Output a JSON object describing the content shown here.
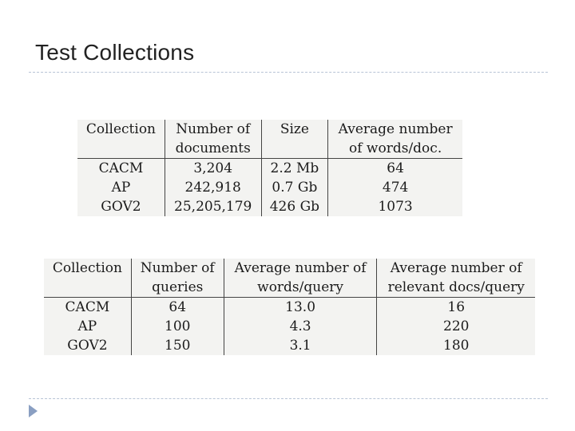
{
  "slide": {
    "title": "Test Collections"
  },
  "documents_table": {
    "headers": [
      "Collection",
      "Number of documents",
      "Size",
      "Average number of words/doc."
    ],
    "header_lines": [
      [
        "Collection"
      ],
      [
        "Number of",
        "documents"
      ],
      [
        "Size"
      ],
      [
        "Average number",
        "of words/doc."
      ]
    ],
    "rows": [
      [
        "CACM",
        "3,204",
        "2.2 Mb",
        "64"
      ],
      [
        "AP",
        "242,918",
        "0.7 Gb",
        "474"
      ],
      [
        "GOV2",
        "25,205,179",
        "426 Gb",
        "1073"
      ]
    ]
  },
  "queries_table": {
    "headers": [
      "Collection",
      "Number of queries",
      "Average number of words/query",
      "Average number of relevant docs/query"
    ],
    "header_lines": [
      [
        "Collection"
      ],
      [
        "Number of",
        "queries"
      ],
      [
        "Average number of",
        "words/query"
      ],
      [
        "Average number of",
        "relevant docs/query"
      ]
    ],
    "rows": [
      [
        "CACM",
        "64",
        "13.0",
        "16"
      ],
      [
        "AP",
        "100",
        "4.3",
        "220"
      ],
      [
        "GOV2",
        "150",
        "3.1",
        "180"
      ]
    ]
  }
}
